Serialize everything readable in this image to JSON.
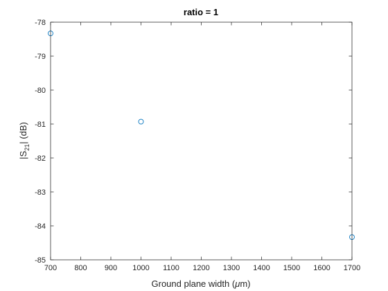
{
  "chart_data": {
    "type": "scatter",
    "title": "ratio = 1",
    "xlabel": "Ground plane width (",
    "xlabel_mu": "μ",
    "xlabel_unit": "m)",
    "ylabel_prefix": "|S",
    "ylabel_sub": "21",
    "ylabel_suffix": "| (dB)",
    "xlim": [
      700,
      1700
    ],
    "ylim": [
      -85,
      -78
    ],
    "xticks": [
      700,
      800,
      900,
      1000,
      1100,
      1200,
      1300,
      1400,
      1500,
      1600,
      1700
    ],
    "yticks": [
      -85,
      -84,
      -83,
      -82,
      -81,
      -80,
      -79,
      -78
    ],
    "grid": false,
    "points": [
      {
        "x": 700,
        "y": -78.33
      },
      {
        "x": 1000,
        "y": -80.93
      },
      {
        "x": 1700,
        "y": -84.33
      }
    ],
    "marker": "circle-open",
    "marker_color": "#0072BD",
    "axis_color": "#262626"
  }
}
